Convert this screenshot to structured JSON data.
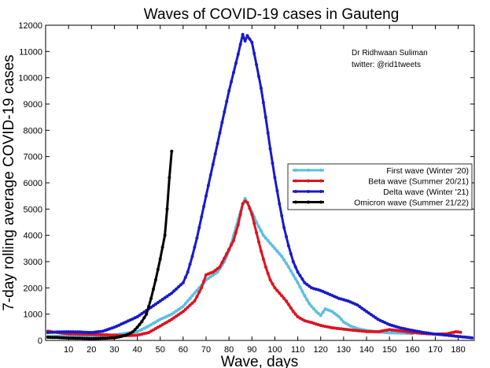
{
  "chart_data": {
    "type": "line",
    "title": "Waves of COVID-19 cases in Gauteng",
    "xlabel": "Wave, days",
    "ylabel": "7-day rolling average COVID-19 cases",
    "xlim": [
      0,
      187
    ],
    "ylim": [
      0,
      12000
    ],
    "x_ticks": [
      10,
      20,
      30,
      40,
      50,
      60,
      70,
      80,
      90,
      100,
      110,
      120,
      130,
      140,
      150,
      160,
      170,
      180
    ],
    "y_ticks": [
      0,
      1000,
      2000,
      3000,
      4000,
      5000,
      6000,
      7000,
      8000,
      9000,
      10000,
      11000,
      12000
    ],
    "grid": false,
    "legend_position": "right",
    "annotations": [
      "Dr Ridhwaan Suliman",
      "twitter: @rid1tweets"
    ],
    "series": [
      {
        "name": "First wave (Winter '20)",
        "color": "#5bbfe0",
        "points": [
          [
            1,
            150
          ],
          [
            10,
            160
          ],
          [
            20,
            170
          ],
          [
            30,
            210
          ],
          [
            40,
            330
          ],
          [
            45,
            550
          ],
          [
            50,
            800
          ],
          [
            55,
            1000
          ],
          [
            60,
            1300
          ],
          [
            65,
            1800
          ],
          [
            70,
            2300
          ],
          [
            75,
            2600
          ],
          [
            78,
            3000
          ],
          [
            80,
            3400
          ],
          [
            82,
            4000
          ],
          [
            84,
            4600
          ],
          [
            86,
            5200
          ],
          [
            87,
            5400
          ],
          [
            88,
            5250
          ],
          [
            90,
            4900
          ],
          [
            92,
            4500
          ],
          [
            95,
            4000
          ],
          [
            98,
            3700
          ],
          [
            100,
            3500
          ],
          [
            103,
            3200
          ],
          [
            106,
            2800
          ],
          [
            110,
            2200
          ],
          [
            113,
            1700
          ],
          [
            115,
            1400
          ],
          [
            118,
            1100
          ],
          [
            120,
            950
          ],
          [
            122,
            1200
          ],
          [
            125,
            1100
          ],
          [
            128,
            900
          ],
          [
            130,
            700
          ],
          [
            133,
            550
          ],
          [
            136,
            450
          ],
          [
            140,
            380
          ],
          [
            145,
            320
          ],
          [
            150,
            290
          ],
          [
            155,
            280
          ],
          [
            160,
            260
          ]
        ]
      },
      {
        "name": "Beta wave (Summer 20/21)",
        "color": "#e0121f",
        "points": [
          [
            1,
            350
          ],
          [
            5,
            300
          ],
          [
            10,
            250
          ],
          [
            20,
            230
          ],
          [
            30,
            200
          ],
          [
            35,
            180
          ],
          [
            40,
            200
          ],
          [
            45,
            300
          ],
          [
            50,
            550
          ],
          [
            55,
            800
          ],
          [
            60,
            1100
          ],
          [
            65,
            1500
          ],
          [
            68,
            2000
          ],
          [
            70,
            2500
          ],
          [
            73,
            2600
          ],
          [
            76,
            2800
          ],
          [
            79,
            3300
          ],
          [
            82,
            3800
          ],
          [
            84,
            4400
          ],
          [
            86,
            5200
          ],
          [
            87,
            5300
          ],
          [
            88,
            5250
          ],
          [
            90,
            4800
          ],
          [
            92,
            4100
          ],
          [
            94,
            3400
          ],
          [
            96,
            2800
          ],
          [
            98,
            2300
          ],
          [
            100,
            2000
          ],
          [
            102,
            1800
          ],
          [
            105,
            1500
          ],
          [
            108,
            1100
          ],
          [
            110,
            900
          ],
          [
            113,
            750
          ],
          [
            116,
            680
          ],
          [
            120,
            570
          ],
          [
            125,
            480
          ],
          [
            130,
            430
          ],
          [
            135,
            380
          ],
          [
            140,
            340
          ],
          [
            145,
            330
          ],
          [
            150,
            410
          ],
          [
            155,
            360
          ],
          [
            160,
            300
          ],
          [
            165,
            260
          ],
          [
            170,
            240
          ],
          [
            175,
            250
          ],
          [
            179,
            330
          ],
          [
            181,
            310
          ]
        ]
      },
      {
        "name": "Delta wave (Winter '21)",
        "color": "#1a1ac8",
        "points": [
          [
            1,
            300
          ],
          [
            5,
            320
          ],
          [
            10,
            330
          ],
          [
            15,
            320
          ],
          [
            20,
            300
          ],
          [
            25,
            350
          ],
          [
            30,
            500
          ],
          [
            35,
            700
          ],
          [
            40,
            900
          ],
          [
            45,
            1200
          ],
          [
            50,
            1500
          ],
          [
            55,
            1800
          ],
          [
            60,
            2200
          ],
          [
            62,
            2600
          ],
          [
            64,
            3200
          ],
          [
            66,
            3900
          ],
          [
            68,
            4700
          ],
          [
            70,
            5500
          ],
          [
            72,
            6300
          ],
          [
            74,
            7100
          ],
          [
            76,
            7900
          ],
          [
            78,
            8700
          ],
          [
            80,
            9500
          ],
          [
            82,
            10200
          ],
          [
            84,
            10900
          ],
          [
            86,
            11650
          ],
          [
            87,
            11400
          ],
          [
            88,
            11600
          ],
          [
            90,
            11350
          ],
          [
            92,
            10500
          ],
          [
            94,
            9600
          ],
          [
            96,
            8500
          ],
          [
            98,
            7300
          ],
          [
            100,
            6200
          ],
          [
            102,
            5200
          ],
          [
            104,
            4300
          ],
          [
            106,
            3600
          ],
          [
            108,
            3000
          ],
          [
            110,
            2600
          ],
          [
            113,
            2200
          ],
          [
            116,
            2000
          ],
          [
            120,
            1900
          ],
          [
            124,
            1750
          ],
          [
            128,
            1600
          ],
          [
            132,
            1500
          ],
          [
            136,
            1350
          ],
          [
            140,
            1100
          ],
          [
            145,
            800
          ],
          [
            150,
            600
          ],
          [
            155,
            470
          ],
          [
            160,
            380
          ],
          [
            165,
            300
          ],
          [
            170,
            240
          ],
          [
            175,
            200
          ],
          [
            180,
            150
          ],
          [
            186,
            100
          ]
        ]
      },
      {
        "name": "Omicron wave (Summer 21/22)",
        "color": "#000000",
        "points": [
          [
            1,
            120
          ],
          [
            5,
            110
          ],
          [
            10,
            90
          ],
          [
            15,
            80
          ],
          [
            20,
            70
          ],
          [
            25,
            80
          ],
          [
            30,
            100
          ],
          [
            33,
            150
          ],
          [
            36,
            230
          ],
          [
            38,
            320
          ],
          [
            40,
            500
          ],
          [
            42,
            720
          ],
          [
            44,
            1000
          ],
          [
            46,
            1600
          ],
          [
            48,
            2300
          ],
          [
            50,
            3100
          ],
          [
            52,
            4000
          ],
          [
            53,
            5000
          ],
          [
            54,
            6200
          ],
          [
            55,
            7200
          ]
        ]
      }
    ]
  }
}
